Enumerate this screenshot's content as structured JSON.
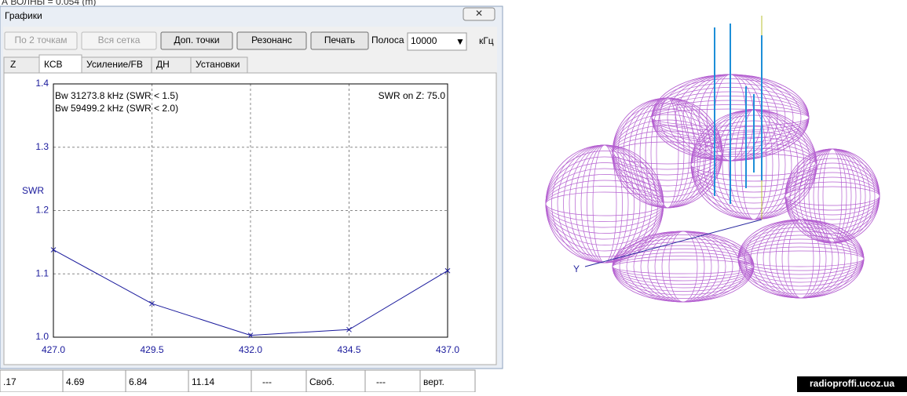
{
  "background": {
    "header_text": "А ВОЛНЫ = 0.054 (m)",
    "table_row": [
      ".17",
      "4.69",
      "6.84",
      "11.14",
      "---",
      "Своб.",
      "---",
      "верт."
    ]
  },
  "window": {
    "title": "Графики",
    "buttons": [
      "По 2 точкам",
      "Вся сетка",
      "Доп. точки",
      "Резонанс",
      "Печать"
    ],
    "disabled_buttons": 2,
    "band_label": "Полоса",
    "band_value": "10000",
    "band_unit": "кГц",
    "tabs": [
      "Z",
      "КСВ",
      "Усиление/FB",
      "ДН",
      "Установки"
    ],
    "active_tab": 1
  },
  "chart_data": {
    "type": "line",
    "ylabel": "SWR",
    "annotations": [
      "Bw 31273.8 kHz (SWR < 1.5)",
      "Bw 59499.2 kHz (SWR < 2.0)",
      "SWR on Z: 75.0"
    ],
    "x": [
      427,
      429.5,
      432,
      434.5,
      437
    ],
    "values": [
      1.138,
      1.053,
      1.003,
      1.012,
      1.105
    ],
    "color": "#1a1a9c",
    "xlim": [
      427,
      437
    ],
    "ylim": [
      1.0,
      1.4
    ],
    "xticks": [
      {
        "value": 427,
        "label": "427.0"
      },
      429.5,
      {
        "value": 432,
        "label": "432.0"
      },
      434.5,
      {
        "value": 437,
        "label": "437.0"
      }
    ],
    "yticks": [
      {
        "value": 1.0,
        "label": "1.0"
      },
      1.1,
      1.2,
      1.3,
      1.4
    ],
    "grid": true
  },
  "pattern": {
    "axis_label": "Y"
  },
  "watermark": "radioproffi.ucoz.ua"
}
